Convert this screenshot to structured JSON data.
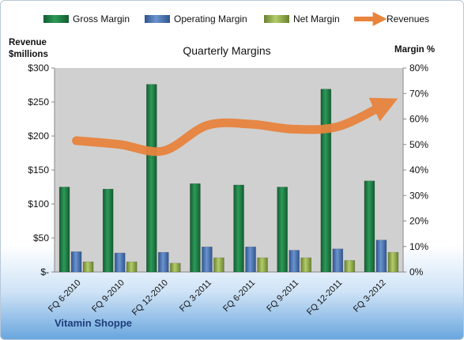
{
  "chart_data": {
    "type": "bar",
    "title": "Quarterly Margins",
    "left_axis_label_line1": "Revenue",
    "left_axis_label_line2": "$millions",
    "right_axis_label": "Margin %",
    "company_label": "Vitamin Shoppe",
    "categories": [
      "FQ 6-2010",
      "FQ 9-2010",
      "FQ 12-2010",
      "FQ 3-2011",
      "FQ 6-2011",
      "FQ 9-2011",
      "FQ 12-2011",
      "FQ 3-2012"
    ],
    "y_left": {
      "min": 0,
      "max": 300,
      "ticks": [
        0,
        50,
        100,
        150,
        200,
        250,
        300
      ],
      "tick_labels": [
        "$-",
        "$50",
        "$100",
        "$150",
        "$200",
        "$250",
        "$300"
      ]
    },
    "y_right": {
      "min": 0,
      "max": 80,
      "ticks": [
        0,
        10,
        20,
        30,
        40,
        50,
        60,
        70,
        80
      ],
      "tick_labels": [
        "0%",
        "10%",
        "20%",
        "30%",
        "40%",
        "50%",
        "60%",
        "70%",
        "80%"
      ]
    },
    "series": [
      {
        "name": "Gross Margin",
        "axis": "left",
        "kind": "bar",
        "values": [
          125,
          122,
          276,
          130,
          128,
          125,
          269,
          134
        ]
      },
      {
        "name": "Operating Margin",
        "axis": "left",
        "kind": "bar",
        "values": [
          30,
          28,
          29,
          37,
          37,
          32,
          34,
          47
        ]
      },
      {
        "name": "Net Margin",
        "axis": "left",
        "kind": "bar",
        "values": [
          15,
          15,
          13,
          21,
          21,
          21,
          17,
          29
        ]
      },
      {
        "name": "Revenues",
        "axis": "right",
        "kind": "line",
        "values": [
          51.5,
          50,
          47.5,
          57.5,
          58,
          56,
          57,
          65
        ]
      }
    ],
    "legend_position": "top",
    "grid": false,
    "colors": {
      "gross": "#1e7b45",
      "operating": "#4a72b0",
      "net": "#8fa94a",
      "revenue_line": "#e8843e",
      "plot_bg": "#d0d0d0",
      "company_label": "#1f3e7a"
    }
  }
}
